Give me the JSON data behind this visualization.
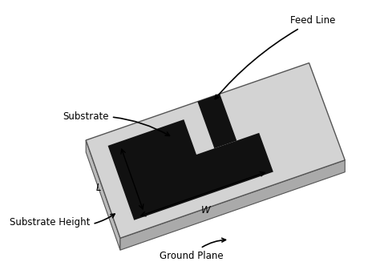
{
  "bg_color": "#ffffff",
  "substrate_color": "#d3d3d3",
  "substrate_edge_color": "#888888",
  "patch_color": "#111111",
  "feed_line_color": "#111111",
  "text_color": "#000000",
  "labels": {
    "substrate": "Substrate",
    "feed_line": "Feed Line",
    "substrate_height": "Substrate Height",
    "ground_plane": "Ground Plane",
    "L": "L",
    "W": "W"
  },
  "figsize": [
    4.74,
    3.42
  ],
  "dpi": 100
}
